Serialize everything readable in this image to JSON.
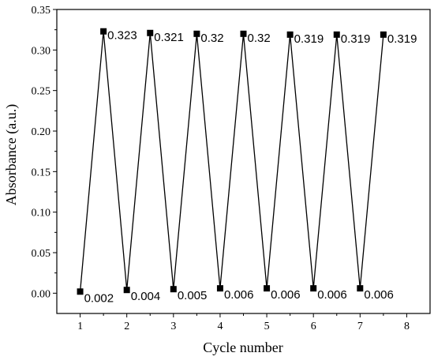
{
  "chart_data": {
    "type": "line",
    "title": "",
    "xlabel": "Cycle number",
    "ylabel": "Absorbance (a.u.)",
    "xlim": [
      0.5,
      8.5
    ],
    "ylim": [
      -0.025,
      0.35
    ],
    "xticks": [
      1,
      2,
      3,
      4,
      5,
      6,
      7,
      8
    ],
    "xtick_labels": [
      "1",
      "2",
      "3",
      "4",
      "5",
      "6",
      "7",
      "8"
    ],
    "yticks": [
      0,
      0.05,
      0.1,
      0.15,
      0.2,
      0.25,
      0.3,
      0.35
    ],
    "ytick_labels": [
      "0.00",
      "0.05",
      "0.10",
      "0.15",
      "0.20",
      "0.25",
      "0.30",
      "0.35"
    ],
    "grid": false,
    "legend": "none",
    "marker": "square",
    "color": "#000000",
    "series": [
      {
        "x": [
          1,
          1.5,
          2,
          2.5,
          3,
          3.5,
          4,
          4.5,
          5,
          5.5,
          6,
          6.5,
          7,
          7.5
        ],
        "values": [
          0.002,
          0.323,
          0.004,
          0.321,
          0.005,
          0.32,
          0.006,
          0.32,
          0.006,
          0.319,
          0.006,
          0.319,
          0.006,
          0.319
        ],
        "labels": [
          "0.002",
          "0.323",
          "0.004",
          "0.321",
          "0.005",
          "0.32",
          "0.006",
          "0.32",
          "0.006",
          "0.319",
          "0.006",
          "0.319",
          "0.006",
          "0.319"
        ]
      }
    ]
  }
}
